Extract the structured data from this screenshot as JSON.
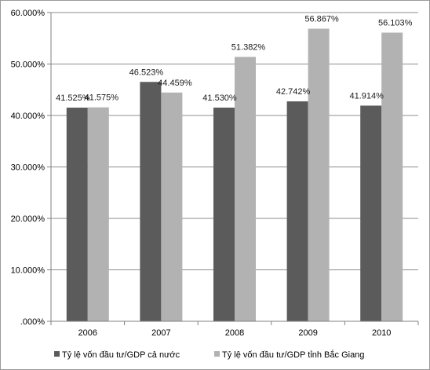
{
  "chart_data": {
    "type": "bar",
    "title": "",
    "xlabel": "",
    "ylabel": "",
    "categories": [
      "2006",
      "2007",
      "2008",
      "2009",
      "2010"
    ],
    "series": [
      {
        "name": "Tỷ lệ vốn đầu tư/GDP cả nước",
        "values": [
          41.525,
          46.523,
          41.53,
          42.742,
          41.914
        ],
        "labels": [
          "41.525%",
          "46.523%",
          "41.530%",
          "42.742%",
          "41.914%"
        ],
        "color": "#5b5b5b"
      },
      {
        "name": "Tỷ lệ vốn đầu tư/GDP tỉnh Bắc Giang",
        "values": [
          41.575,
          44.459,
          51.382,
          56.867,
          56.103
        ],
        "labels": [
          "41.575%",
          "44.459%",
          "51.382%",
          "56.867%",
          "56.103%"
        ],
        "color": "#b2b2b2"
      }
    ],
    "ylim": [
      0,
      60
    ],
    "yticks": [
      0,
      10,
      20,
      30,
      40,
      50,
      60
    ],
    "ytick_labels": [
      ".000%",
      "10.000%",
      "20.000%",
      "30.000%",
      "40.000%",
      "50.000%",
      "60.000%"
    ],
    "grid": true,
    "legend_position": "bottom"
  }
}
